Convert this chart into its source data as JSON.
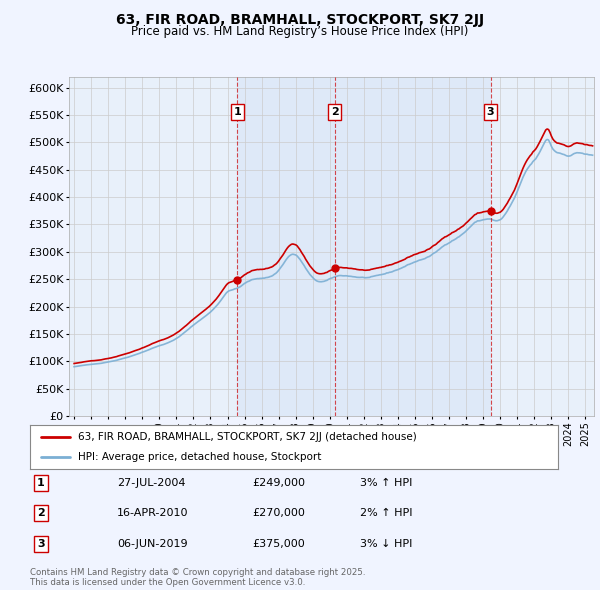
{
  "title": "63, FIR ROAD, BRAMHALL, STOCKPORT, SK7 2JJ",
  "subtitle": "Price paid vs. HM Land Registry’s House Price Index (HPI)",
  "background_color": "#f0f4ff",
  "plot_background": "#e8f0fa",
  "shaded_background": "#dce8f8",
  "ylim": [
    0,
    620000
  ],
  "yticks": [
    0,
    50000,
    100000,
    150000,
    200000,
    250000,
    300000,
    350000,
    400000,
    450000,
    500000,
    550000,
    600000
  ],
  "ytick_labels": [
    "£0",
    "£50K",
    "£100K",
    "£150K",
    "£200K",
    "£250K",
    "£300K",
    "£350K",
    "£400K",
    "£450K",
    "£500K",
    "£550K",
    "£600K"
  ],
  "transactions": [
    {
      "date_num": 2004.57,
      "price": 249000,
      "label": "1"
    },
    {
      "date_num": 2010.29,
      "price": 270000,
      "label": "2"
    },
    {
      "date_num": 2019.43,
      "price": 375000,
      "label": "3"
    }
  ],
  "transaction_details": [
    {
      "num": "1",
      "date": "27-JUL-2004",
      "price": "£249,000",
      "change": "3% ↑ HPI"
    },
    {
      "num": "2",
      "date": "16-APR-2010",
      "price": "£270,000",
      "change": "2% ↑ HPI"
    },
    {
      "num": "3",
      "date": "06-JUN-2019",
      "price": "£375,000",
      "change": "3% ↓ HPI"
    }
  ],
  "vline_color": "#cc0000",
  "hpi_color": "#7bafd4",
  "price_color": "#cc0000",
  "grid_color": "#cccccc",
  "legend_label_price": "63, FIR ROAD, BRAMHALL, STOCKPORT, SK7 2JJ (detached house)",
  "legend_label_hpi": "HPI: Average price, detached house, Stockport",
  "footer": "Contains HM Land Registry data © Crown copyright and database right 2025.\nThis data is licensed under the Open Government Licence v3.0.",
  "xlim_start": 1995.0,
  "xlim_end": 2025.5
}
